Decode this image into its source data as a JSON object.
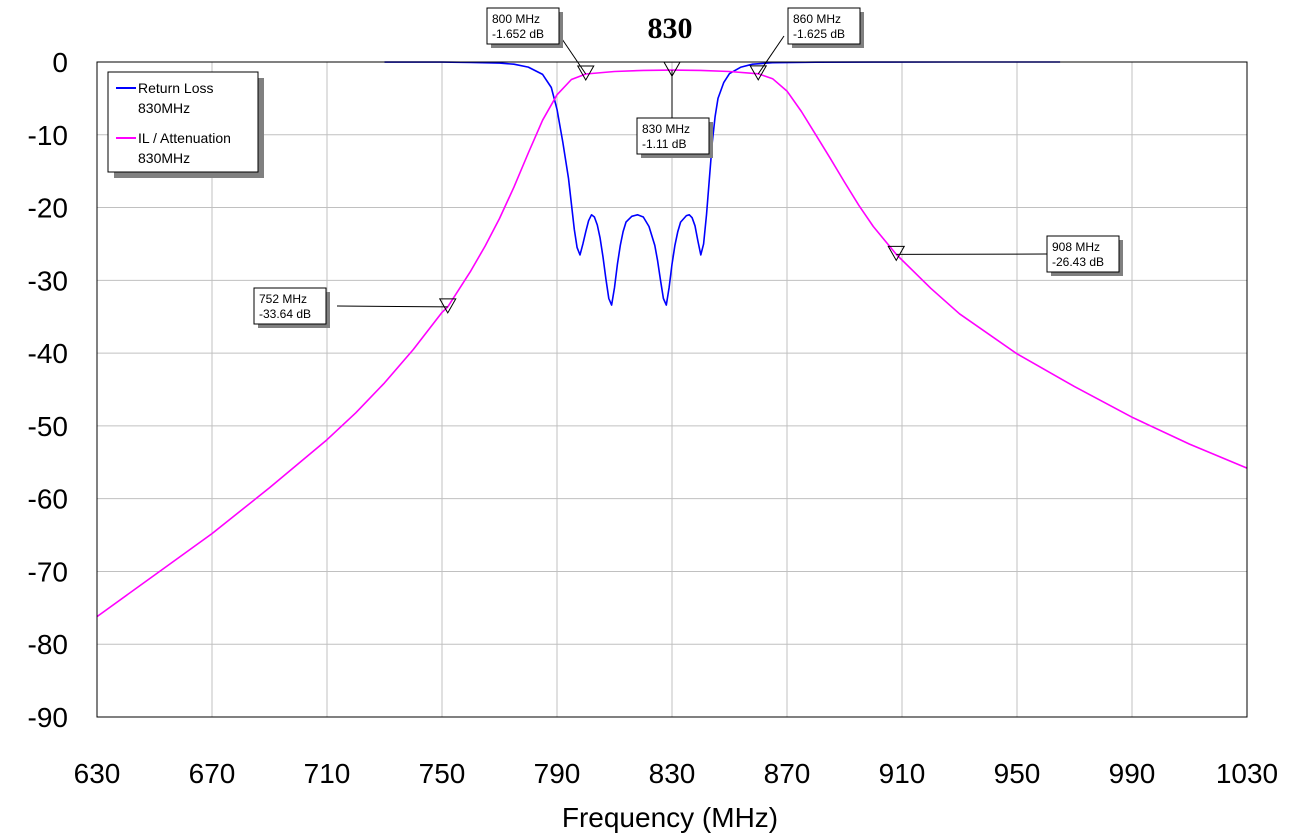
{
  "chart_data": {
    "type": "line",
    "title": "830",
    "xlabel": "Frequency (MHz)",
    "ylabel": "",
    "xlim": [
      630,
      1030
    ],
    "ylim": [
      -90,
      0
    ],
    "x_ticks": [
      630,
      670,
      710,
      750,
      790,
      830,
      870,
      910,
      950,
      990,
      1030
    ],
    "y_ticks": [
      0,
      -10,
      -20,
      -30,
      -40,
      -50,
      -60,
      -70,
      -80,
      -90
    ],
    "grid": true,
    "legend_position": "top-left",
    "legend": [
      {
        "label": "Return Loss",
        "sublabel": "830MHz",
        "color": "#0000ff"
      },
      {
        "label": "IL / Attenuation",
        "sublabel": "830MHz",
        "color": "#ff00ff"
      }
    ],
    "series": [
      {
        "name": "Return Loss",
        "color": "#0000ff",
        "points": [
          [
            730,
            -0.01
          ],
          [
            750,
            -0.02
          ],
          [
            760,
            -0.05
          ],
          [
            770,
            -0.15
          ],
          [
            775,
            -0.3
          ],
          [
            780,
            -0.7
          ],
          [
            785,
            -1.7
          ],
          [
            788,
            -3.5
          ],
          [
            790,
            -6.5
          ],
          [
            792,
            -11
          ],
          [
            794,
            -16
          ],
          [
            795,
            -19.5
          ],
          [
            796,
            -23
          ],
          [
            797,
            -25.5
          ],
          [
            798,
            -26.5
          ],
          [
            799,
            -25
          ],
          [
            800,
            -23.3
          ],
          [
            801,
            -21.8
          ],
          [
            802,
            -21
          ],
          [
            803,
            -21.3
          ],
          [
            804,
            -22.4
          ],
          [
            805,
            -24.2
          ],
          [
            806,
            -26.8
          ],
          [
            807,
            -29.8
          ],
          [
            808,
            -32.5
          ],
          [
            809,
            -33.4
          ],
          [
            810,
            -31
          ],
          [
            811,
            -27.8
          ],
          [
            812,
            -25.2
          ],
          [
            813,
            -23.3
          ],
          [
            814,
            -22
          ],
          [
            816,
            -21.2
          ],
          [
            818,
            -21
          ],
          [
            820,
            -21.3
          ],
          [
            822,
            -22.6
          ],
          [
            824,
            -25.2
          ],
          [
            825,
            -27.3
          ],
          [
            826,
            -30
          ],
          [
            827,
            -32.5
          ],
          [
            828,
            -33.4
          ],
          [
            829,
            -31
          ],
          [
            830,
            -27.8
          ],
          [
            831,
            -25.2
          ],
          [
            832,
            -23.3
          ],
          [
            833,
            -22
          ],
          [
            835,
            -21.1
          ],
          [
            836,
            -21
          ],
          [
            837,
            -21.4
          ],
          [
            838,
            -22.5
          ],
          [
            839,
            -24.6
          ],
          [
            840,
            -26.5
          ],
          [
            841,
            -25
          ],
          [
            842,
            -21
          ],
          [
            843,
            -16
          ],
          [
            844,
            -11
          ],
          [
            845,
            -7.5
          ],
          [
            846,
            -5
          ],
          [
            848,
            -2.8
          ],
          [
            850,
            -1.6
          ],
          [
            854,
            -0.7
          ],
          [
            858,
            -0.3
          ],
          [
            865,
            -0.1
          ],
          [
            880,
            -0.03
          ],
          [
            900,
            -0.01
          ],
          [
            930,
            -0.003
          ],
          [
            965,
            -0.001
          ]
        ]
      },
      {
        "name": "IL / Attenuation",
        "color": "#ff00ff",
        "points": [
          [
            630,
            -76.2
          ],
          [
            650,
            -70.5
          ],
          [
            670,
            -64.8
          ],
          [
            690,
            -58.5
          ],
          [
            710,
            -51.9
          ],
          [
            720,
            -48.2
          ],
          [
            730,
            -44.1
          ],
          [
            740,
            -39.5
          ],
          [
            750,
            -34.4
          ],
          [
            752,
            -33.64
          ],
          [
            760,
            -28.7
          ],
          [
            765,
            -25.3
          ],
          [
            770,
            -21.5
          ],
          [
            775,
            -17.2
          ],
          [
            780,
            -12.5
          ],
          [
            785,
            -8
          ],
          [
            790,
            -4.5
          ],
          [
            795,
            -2.4
          ],
          [
            800,
            -1.652
          ],
          [
            810,
            -1.3
          ],
          [
            820,
            -1.15
          ],
          [
            830,
            -1.11
          ],
          [
            840,
            -1.15
          ],
          [
            850,
            -1.3
          ],
          [
            860,
            -1.625
          ],
          [
            865,
            -2.3
          ],
          [
            870,
            -4
          ],
          [
            875,
            -6.8
          ],
          [
            880,
            -10
          ],
          [
            885,
            -13.2
          ],
          [
            890,
            -16.5
          ],
          [
            895,
            -19.7
          ],
          [
            900,
            -22.6
          ],
          [
            908,
            -26.43
          ],
          [
            920,
            -31.1
          ],
          [
            930,
            -34.6
          ],
          [
            950,
            -40.1
          ],
          [
            970,
            -44.6
          ],
          [
            990,
            -48.8
          ],
          [
            1010,
            -52.5
          ],
          [
            1030,
            -55.8
          ]
        ]
      }
    ],
    "markers": [
      {
        "x": 752,
        "y": -33.64,
        "label1": "752 MHz",
        "label2": "-33.64 dB"
      },
      {
        "x": 800,
        "y": -1.652,
        "label1": "800 MHz",
        "label2": "-1.652 dB"
      },
      {
        "x": 830,
        "y": -1.11,
        "label1": "830 MHz",
        "label2": "-1.11 dB"
      },
      {
        "x": 860,
        "y": -1.625,
        "label1": "860 MHz",
        "label2": "-1.625 dB"
      },
      {
        "x": 908,
        "y": -26.43,
        "label1": "908 MHz",
        "label2": "-26.43 dB"
      }
    ]
  }
}
